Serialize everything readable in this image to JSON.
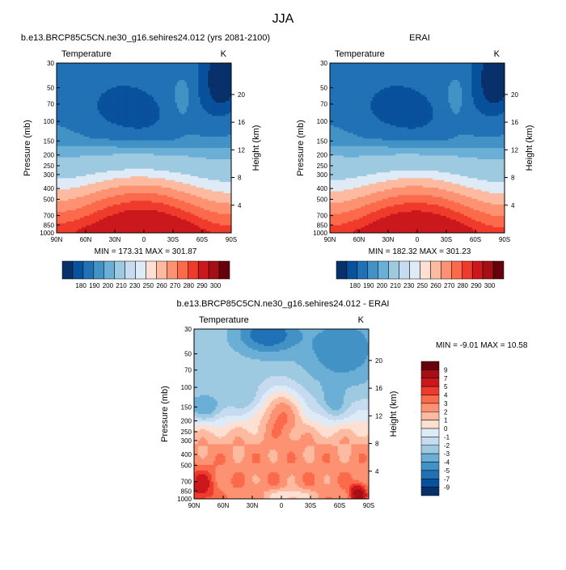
{
  "page_title": "JJA",
  "colors": {
    "diverging": [
      "#08306b",
      "#08519c",
      "#2171b5",
      "#4292c6",
      "#6baed6",
      "#9ecae1",
      "#c6dbef",
      "#deebf7",
      "#fee0d2",
      "#fcbba1",
      "#fc9272",
      "#fb6a4a",
      "#ef3b2c",
      "#cb181d",
      "#a50f15",
      "#67000d"
    ]
  },
  "chart_data": [
    {
      "type": "heatmap",
      "title": "b.e13.BRCP85C5CN.ne30_g16.sehires24.012 (yrs 2081-2100)",
      "variable_label": "Temperature",
      "units_label": "K",
      "ylabel": "Pressure (mb)",
      "y2label": "Height (km)",
      "x_ticks": [
        "90N",
        "60N",
        "30N",
        "0",
        "30S",
        "60S",
        "90S"
      ],
      "y_ticks": [
        "30",
        "50",
        "70",
        "100",
        "150",
        "200",
        "250",
        "300",
        "400",
        "500",
        "700",
        "850",
        "1000"
      ],
      "y2_ticks": [
        "20",
        "16",
        "12",
        "8",
        "4"
      ],
      "stats": "MIN = 173.31  MAX = 301.87",
      "min": 173.31,
      "max": 301.87,
      "colorbar_labels": [
        "180",
        "190",
        "200",
        "210",
        "230",
        "250",
        "260",
        "270",
        "280",
        "290",
        "300"
      ]
    },
    {
      "type": "heatmap",
      "title": "ERAI",
      "variable_label": "Temperature",
      "units_label": "K",
      "ylabel": "Pressure (mb)",
      "y2label": "Height (km)",
      "x_ticks": [
        "90N",
        "60N",
        "30N",
        "0",
        "30S",
        "60S",
        "90S"
      ],
      "y_ticks": [
        "30",
        "50",
        "70",
        "100",
        "150",
        "200",
        "250",
        "300",
        "400",
        "500",
        "700",
        "850",
        "1000"
      ],
      "y2_ticks": [
        "20",
        "16",
        "12",
        "8",
        "4"
      ],
      "stats": "MIN = 182.32  MAX = 301.23",
      "min": 182.32,
      "max": 301.23,
      "colorbar_labels": [
        "180",
        "190",
        "200",
        "210",
        "230",
        "250",
        "260",
        "270",
        "280",
        "290",
        "300"
      ]
    },
    {
      "type": "heatmap",
      "title": "b.e13.BRCP85C5CN.ne30_g16.sehires24.012 - ERAI",
      "variable_label": "Temperature",
      "units_label": "K",
      "ylabel": "Pressure (mb)",
      "y2label": "Height (km)",
      "x_ticks": [
        "90N",
        "60N",
        "30N",
        "0",
        "30S",
        "60S",
        "90S"
      ],
      "y_ticks": [
        "30",
        "50",
        "70",
        "100",
        "150",
        "200",
        "250",
        "300",
        "400",
        "500",
        "700",
        "850",
        "1000"
      ],
      "y2_ticks": [
        "20",
        "16",
        "12",
        "8",
        "4"
      ],
      "stats": "MIN = -9.01  MAX = 10.58",
      "min": -9.01,
      "max": 10.58,
      "colorbar_labels": [
        "9",
        "7",
        "5",
        "4",
        "3",
        "2",
        "1",
        "0",
        "-1",
        "-2",
        "-3",
        "-4",
        "-5",
        "-7",
        "-9"
      ]
    }
  ]
}
